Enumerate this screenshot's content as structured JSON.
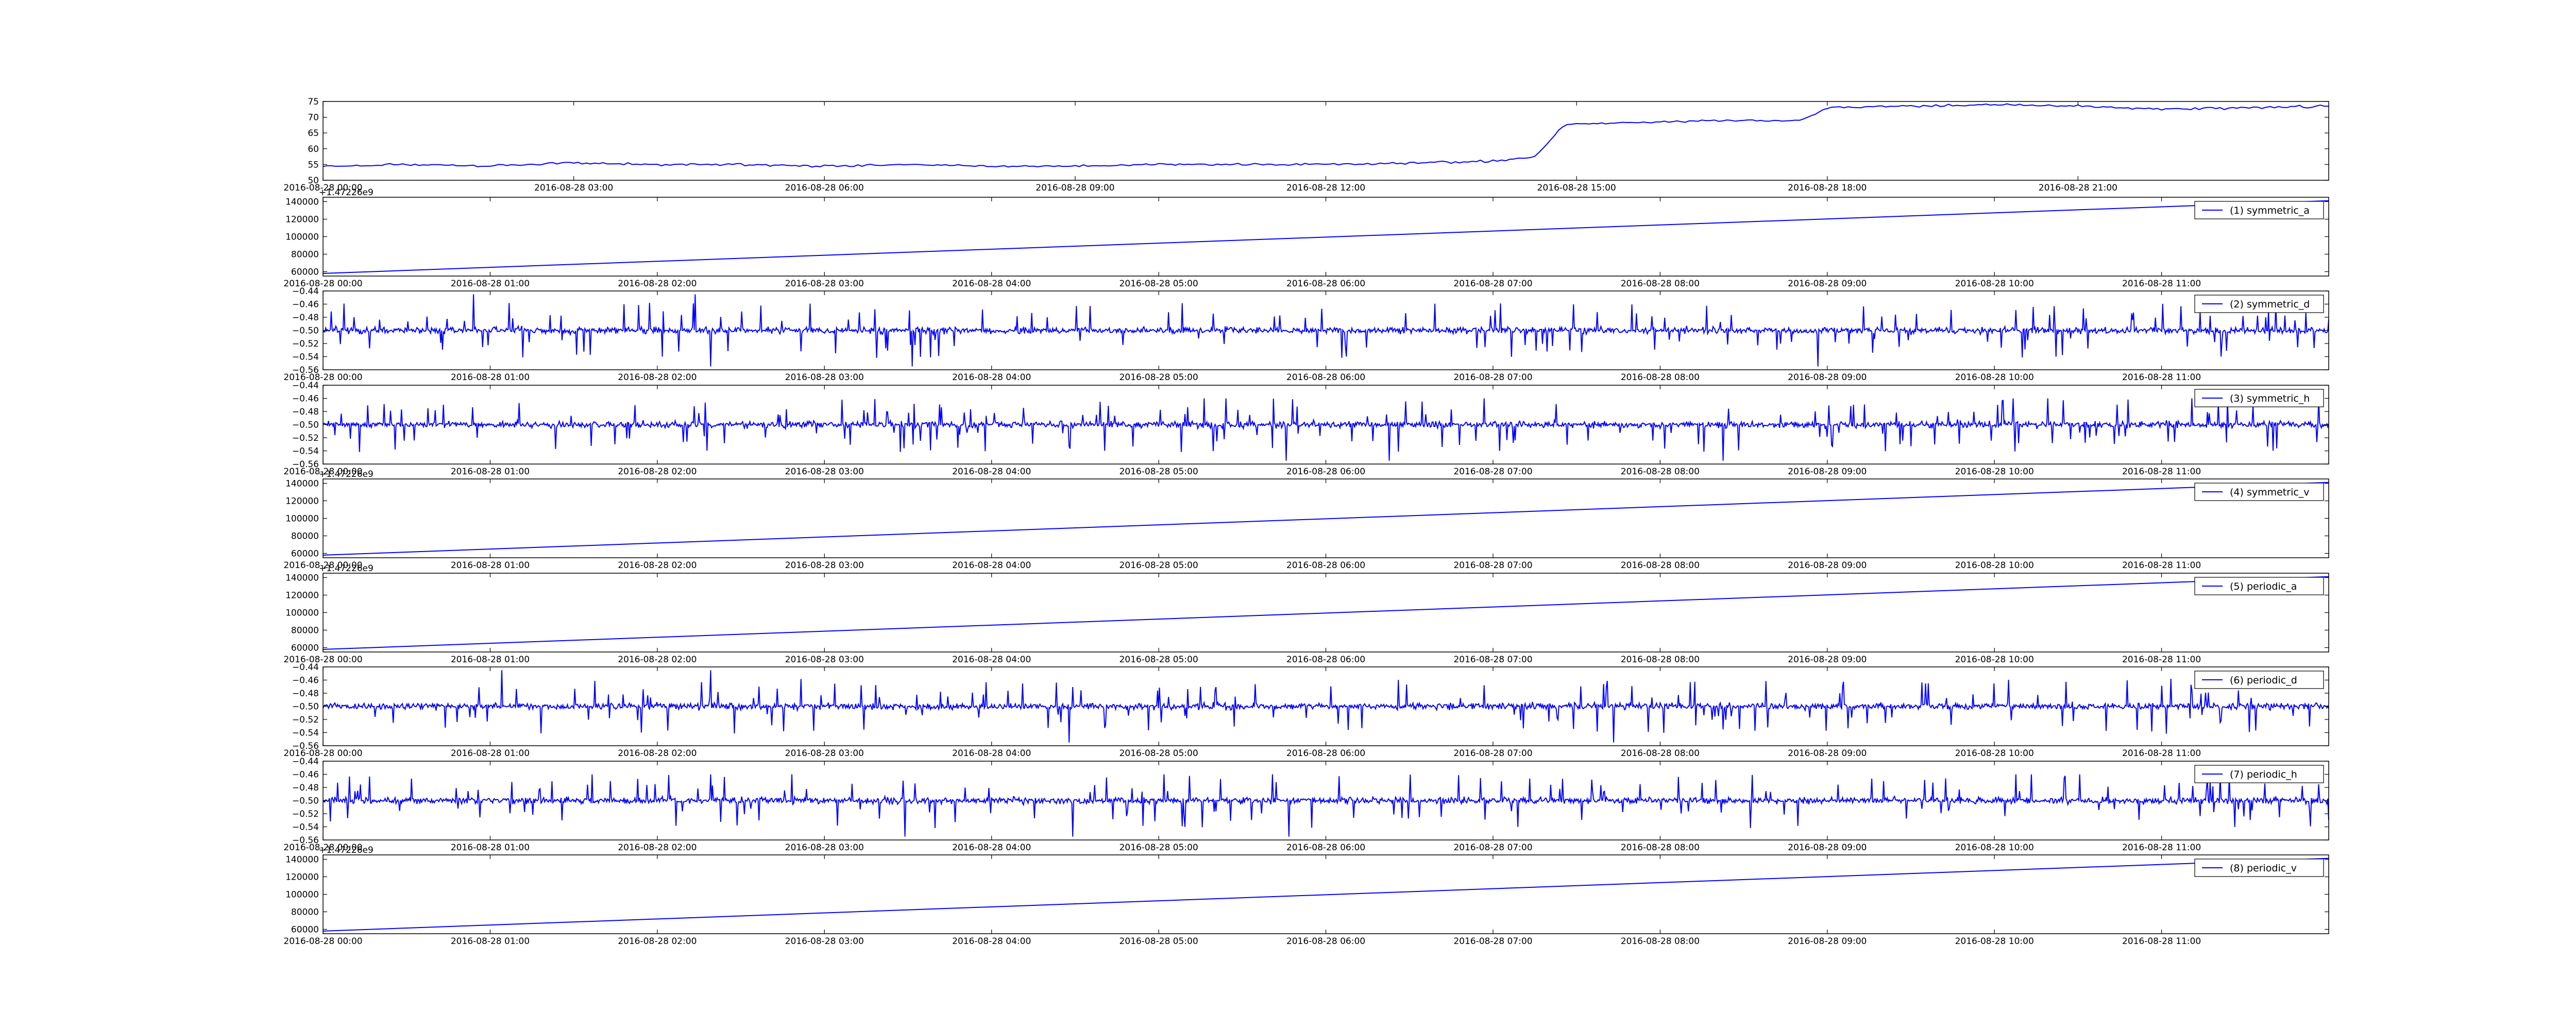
{
  "chart_data": [
    {
      "type": "line",
      "x_range": [
        "2016-08-28 00:00",
        "2016-08-29 00:00"
      ],
      "xticks": [
        "2016-08-28 00:00",
        "2016-08-28 03:00",
        "2016-08-28 06:00",
        "2016-08-28 09:00",
        "2016-08-28 12:00",
        "2016-08-28 15:00",
        "2016-08-28 18:00",
        "2016-08-28 21:00"
      ],
      "yticks": [
        "50",
        "55",
        "60",
        "65",
        "70",
        "75"
      ],
      "ylim": [
        50,
        75
      ],
      "grid": false,
      "legend": null,
      "series": [
        {
          "color": "#0000ff",
          "points": [
            [
              "2016-08-28 00:00",
              54.5
            ],
            [
              "2016-08-28 01:00",
              55
            ],
            [
              "2016-08-28 02:00",
              54.5
            ],
            [
              "2016-08-28 03:00",
              55.5
            ],
            [
              "2016-08-28 04:00",
              55
            ],
            [
              "2016-08-28 05:00",
              55
            ],
            [
              "2016-08-28 06:00",
              54.5
            ],
            [
              "2016-08-28 07:00",
              55
            ],
            [
              "2016-08-28 08:00",
              54.5
            ],
            [
              "2016-08-28 09:00",
              54.5
            ],
            [
              "2016-08-28 10:00",
              55
            ],
            [
              "2016-08-28 11:00",
              55
            ],
            [
              "2016-08-28 12:00",
              55
            ],
            [
              "2016-08-28 13:00",
              55.5
            ],
            [
              "2016-08-28 14:00",
              56
            ],
            [
              "2016-08-28 14:30",
              57.5
            ],
            [
              "2016-08-28 14:50",
              67
            ],
            [
              "2016-08-28 15:00",
              68
            ],
            [
              "2016-08-28 16:00",
              68.5
            ],
            [
              "2016-08-28 17:00",
              69
            ],
            [
              "2016-08-28 17:40",
              69
            ],
            [
              "2016-08-28 18:00",
              73
            ],
            [
              "2016-08-28 19:00",
              73.5
            ],
            [
              "2016-08-28 20:00",
              74
            ],
            [
              "2016-08-28 21:00",
              73.5
            ],
            [
              "2016-08-28 22:00",
              72.5
            ],
            [
              "2016-08-28 23:00",
              73
            ],
            [
              "2016-08-29 00:00",
              73.5
            ]
          ]
        }
      ]
    },
    {
      "type": "line",
      "offset_label": "+1.47226e9",
      "x_range": [
        "2016-08-28 00:00",
        "2016-08-28 12:00"
      ],
      "xticks": [
        "2016-08-28 00:00",
        "2016-08-28 01:00",
        "2016-08-28 02:00",
        "2016-08-28 03:00",
        "2016-08-28 04:00",
        "2016-08-28 05:00",
        "2016-08-28 06:00",
        "2016-08-28 07:00",
        "2016-08-28 08:00",
        "2016-08-28 09:00",
        "2016-08-28 10:00",
        "2016-08-28 11:00"
      ],
      "yticks": [
        "60000",
        "80000",
        "100000",
        "120000",
        "140000"
      ],
      "ylim": [
        55000,
        145000
      ],
      "legend": "top-right",
      "series": [
        {
          "name": "(1) symmetric_a",
          "color": "#0000ff",
          "points": [
            [
              "2016-08-28 00:00",
              58000
            ],
            [
              "2016-08-28 12:00",
              141000
            ]
          ]
        }
      ]
    },
    {
      "type": "line",
      "x_range": [
        "2016-08-28 00:00",
        "2016-08-28 12:00"
      ],
      "xticks": [
        "2016-08-28 00:00",
        "2016-08-28 01:00",
        "2016-08-28 02:00",
        "2016-08-28 03:00",
        "2016-08-28 04:00",
        "2016-08-28 05:00",
        "2016-08-28 06:00",
        "2016-08-28 07:00",
        "2016-08-28 08:00",
        "2016-08-28 09:00",
        "2016-08-28 10:00",
        "2016-08-28 11:00"
      ],
      "yticks": [
        "−0.56",
        "−0.54",
        "−0.52",
        "−0.50",
        "−0.48",
        "−0.46",
        "−0.44"
      ],
      "ylim": [
        -0.56,
        -0.44
      ],
      "legend": "top-right",
      "series": [
        {
          "name": "(2) symmetric_d",
          "color": "#0000ff",
          "baseline": -0.5,
          "range": [
            -0.555,
            -0.445
          ]
        }
      ]
    },
    {
      "type": "line",
      "x_range": [
        "2016-08-28 00:00",
        "2016-08-28 12:00"
      ],
      "xticks": [
        "2016-08-28 00:00",
        "2016-08-28 01:00",
        "2016-08-28 02:00",
        "2016-08-28 03:00",
        "2016-08-28 04:00",
        "2016-08-28 05:00",
        "2016-08-28 06:00",
        "2016-08-28 07:00",
        "2016-08-28 08:00",
        "2016-08-28 09:00",
        "2016-08-28 10:00",
        "2016-08-28 11:00"
      ],
      "yticks": [
        "−0.56",
        "−0.54",
        "−0.52",
        "−0.50",
        "−0.48",
        "−0.46",
        "−0.44"
      ],
      "ylim": [
        -0.56,
        -0.44
      ],
      "legend": "top-right",
      "series": [
        {
          "name": "(3) symmetric_h",
          "color": "#0000ff",
          "baseline": -0.5,
          "range": [
            -0.555,
            -0.46
          ]
        }
      ]
    },
    {
      "type": "line",
      "offset_label": "+1.47226e9",
      "x_range": [
        "2016-08-28 00:00",
        "2016-08-28 12:00"
      ],
      "xticks": [
        "2016-08-28 00:00",
        "2016-08-28 01:00",
        "2016-08-28 02:00",
        "2016-08-28 03:00",
        "2016-08-28 04:00",
        "2016-08-28 05:00",
        "2016-08-28 06:00",
        "2016-08-28 07:00",
        "2016-08-28 08:00",
        "2016-08-28 09:00",
        "2016-08-28 10:00",
        "2016-08-28 11:00"
      ],
      "yticks": [
        "60000",
        "80000",
        "100000",
        "120000",
        "140000"
      ],
      "ylim": [
        55000,
        145000
      ],
      "legend": "top-right",
      "series": [
        {
          "name": "(4) symmetric_v",
          "color": "#0000ff",
          "points": [
            [
              "2016-08-28 00:00",
              58000
            ],
            [
              "2016-08-28 12:00",
              141000
            ]
          ]
        }
      ]
    },
    {
      "type": "line",
      "offset_label": "+1.47226e9",
      "x_range": [
        "2016-08-28 00:00",
        "2016-08-28 12:00"
      ],
      "xticks": [
        "2016-08-28 00:00",
        "2016-08-28 01:00",
        "2016-08-28 02:00",
        "2016-08-28 03:00",
        "2016-08-28 04:00",
        "2016-08-28 05:00",
        "2016-08-28 06:00",
        "2016-08-28 07:00",
        "2016-08-28 08:00",
        "2016-08-28 09:00",
        "2016-08-28 10:00",
        "2016-08-28 11:00"
      ],
      "yticks": [
        "60000",
        "80000",
        "100000",
        "120000",
        "140000"
      ],
      "ylim": [
        55000,
        145000
      ],
      "legend": "top-right",
      "series": [
        {
          "name": "(5) periodic_a",
          "color": "#0000ff",
          "points": [
            [
              "2016-08-28 00:00",
              58000
            ],
            [
              "2016-08-28 12:00",
              141000
            ]
          ]
        }
      ]
    },
    {
      "type": "line",
      "x_range": [
        "2016-08-28 00:00",
        "2016-08-28 12:00"
      ],
      "xticks": [
        "2016-08-28 00:00",
        "2016-08-28 01:00",
        "2016-08-28 02:00",
        "2016-08-28 03:00",
        "2016-08-28 04:00",
        "2016-08-28 05:00",
        "2016-08-28 06:00",
        "2016-08-28 07:00",
        "2016-08-28 08:00",
        "2016-08-28 09:00",
        "2016-08-28 10:00",
        "2016-08-28 11:00"
      ],
      "yticks": [
        "−0.56",
        "−0.54",
        "−0.52",
        "−0.50",
        "−0.48",
        "−0.46",
        "−0.44"
      ],
      "ylim": [
        -0.56,
        -0.44
      ],
      "legend": "top-right",
      "series": [
        {
          "name": "(6) periodic_d",
          "color": "#0000ff",
          "baseline": -0.5,
          "range": [
            -0.555,
            -0.445
          ]
        }
      ]
    },
    {
      "type": "line",
      "x_range": [
        "2016-08-28 00:00",
        "2016-08-28 12:00"
      ],
      "xticks": [
        "2016-08-28 00:00",
        "2016-08-28 01:00",
        "2016-08-28 02:00",
        "2016-08-28 03:00",
        "2016-08-28 04:00",
        "2016-08-28 05:00",
        "2016-08-28 06:00",
        "2016-08-28 07:00",
        "2016-08-28 08:00",
        "2016-08-28 09:00",
        "2016-08-28 10:00",
        "2016-08-28 11:00"
      ],
      "yticks": [
        "−0.56",
        "−0.54",
        "−0.52",
        "−0.50",
        "−0.48",
        "−0.46",
        "−0.44"
      ],
      "ylim": [
        -0.56,
        -0.44
      ],
      "legend": "top-right",
      "series": [
        {
          "name": "(7) periodic_h",
          "color": "#0000ff",
          "baseline": -0.5,
          "range": [
            -0.555,
            -0.46
          ]
        }
      ]
    },
    {
      "type": "line",
      "offset_label": "+1.47226e9",
      "x_range": [
        "2016-08-28 00:00",
        "2016-08-28 12:00"
      ],
      "xticks": [
        "2016-08-28 00:00",
        "2016-08-28 01:00",
        "2016-08-28 02:00",
        "2016-08-28 03:00",
        "2016-08-28 04:00",
        "2016-08-28 05:00",
        "2016-08-28 06:00",
        "2016-08-28 07:00",
        "2016-08-28 08:00",
        "2016-08-28 09:00",
        "2016-08-28 10:00",
        "2016-08-28 11:00"
      ],
      "yticks": [
        "60000",
        "80000",
        "100000",
        "120000",
        "140000"
      ],
      "ylim": [
        55000,
        145000
      ],
      "legend": "top-right",
      "series": [
        {
          "name": "(8) periodic_v",
          "color": "#0000ff",
          "points": [
            [
              "2016-08-28 00:00",
              58000
            ],
            [
              "2016-08-28 12:00",
              141000
            ]
          ]
        }
      ]
    }
  ]
}
